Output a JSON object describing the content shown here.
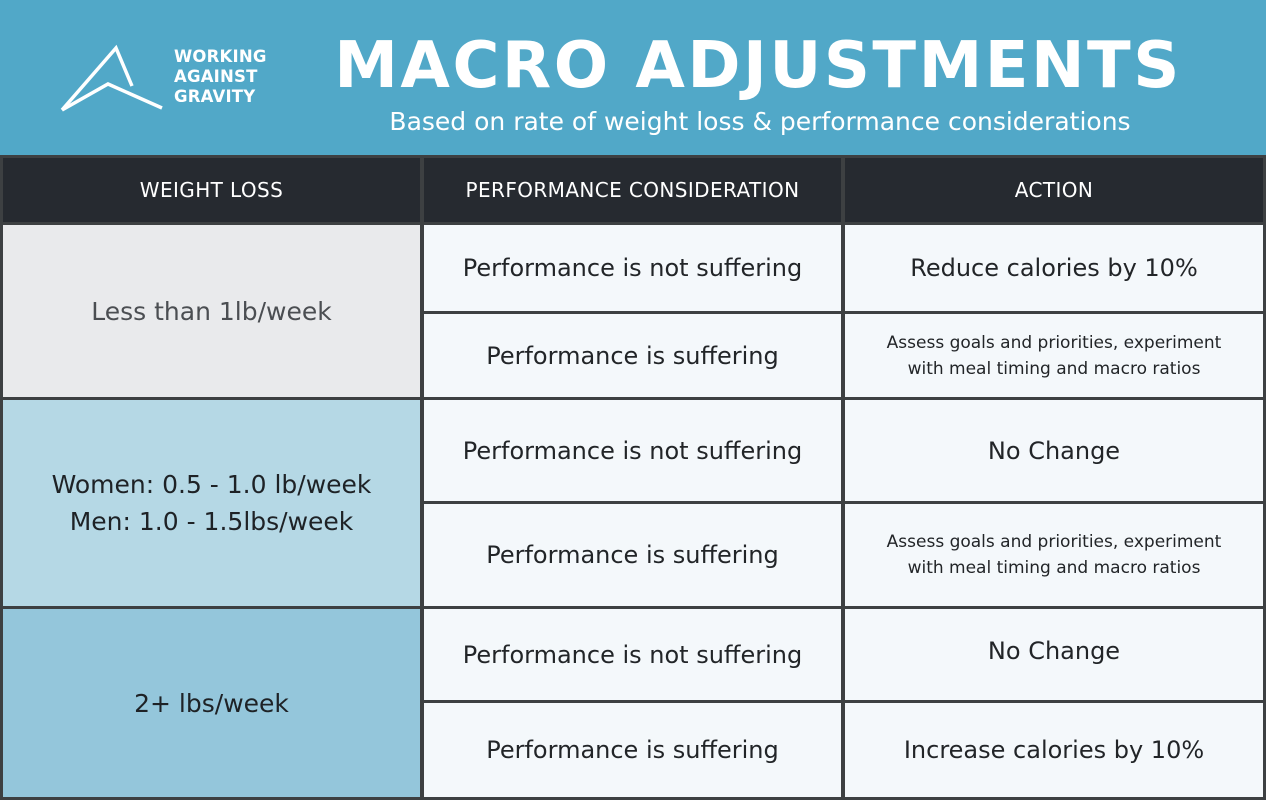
{
  "brand": {
    "lines": [
      "WORKING",
      "AGAINST",
      "GRAVITY"
    ],
    "icon": "mountain-peak-logo"
  },
  "header": {
    "title": "MACRO ADJUSTMENTS",
    "subtitle": "Based on rate of weight loss & performance considerations"
  },
  "table": {
    "columns": [
      "WEIGHT LOSS",
      "PERFORMANCE CONSIDERATION",
      "ACTION"
    ],
    "groups": [
      {
        "weight_loss": [
          "Less than 1lb/week"
        ],
        "rows": [
          {
            "performance": "Performance is not suffering",
            "action": [
              "Reduce calories by 10%"
            ]
          },
          {
            "performance": "Performance is suffering",
            "action": [
              "Assess goals and priorities, experiment",
              "with meal timing and macro ratios"
            ]
          }
        ]
      },
      {
        "weight_loss": [
          "Women: 0.5 - 1.0 lb/week",
          "Men: 1.0 - 1.5lbs/week"
        ],
        "rows": [
          {
            "performance": "Performance is not suffering",
            "action": [
              "No Change"
            ]
          },
          {
            "performance": "Performance is suffering",
            "action": [
              "Assess goals and priorities, experiment",
              "with meal timing and macro ratios"
            ]
          }
        ]
      },
      {
        "weight_loss": [
          "2+ lbs/week"
        ],
        "rows": [
          {
            "performance": "Performance is not suffering",
            "action": [
              "No Change"
            ]
          },
          {
            "performance": "Performance is suffering",
            "action": [
              "Increase calories by 10%"
            ]
          }
        ]
      }
    ]
  },
  "colors": {
    "header_bg": "#51a8c8",
    "column_header_bg": "#262a30",
    "group1_bg": "#e9eaec",
    "group2_bg": "#b5d8e5",
    "group3_bg": "#94c6db",
    "cell_bg": "#f4f8fb",
    "grid": "#3d4042"
  }
}
